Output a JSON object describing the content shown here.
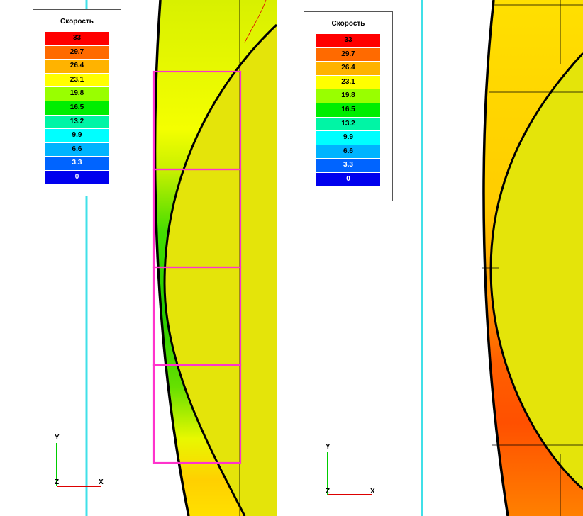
{
  "legend": {
    "title": "Скорость",
    "entries": [
      {
        "value": "33",
        "color": "#ff0000",
        "text_color": "#000000"
      },
      {
        "value": "29.7",
        "color": "#ff6a00",
        "text_color": "#000000"
      },
      {
        "value": "26.4",
        "color": "#ffb300",
        "text_color": "#000000"
      },
      {
        "value": "23.1",
        "color": "#ffff00",
        "text_color": "#000000"
      },
      {
        "value": "19.8",
        "color": "#99ff00",
        "text_color": "#000000"
      },
      {
        "value": "16.5",
        "color": "#00ee00",
        "text_color": "#000000"
      },
      {
        "value": "13.2",
        "color": "#00f5a5",
        "text_color": "#000000"
      },
      {
        "value": "9.9",
        "color": "#00ffff",
        "text_color": "#000000"
      },
      {
        "value": "6.6",
        "color": "#00b4ff",
        "text_color": "#000000"
      },
      {
        "value": "3.3",
        "color": "#0064ff",
        "text_color": "#ffffff"
      },
      {
        "value": "0",
        "color": "#0000ee",
        "text_color": "#ffffff"
      }
    ]
  },
  "axes": {
    "y_label": "Y",
    "z_label": "Z",
    "x_label": "X"
  },
  "colors": {
    "cyan_line": "#40e0e8",
    "highlight_frame": "#ff33cc",
    "body_fill": "#e4e40a",
    "outline": "#000000",
    "axis_y": "#00cc00",
    "axis_x": "#dd0000"
  }
}
